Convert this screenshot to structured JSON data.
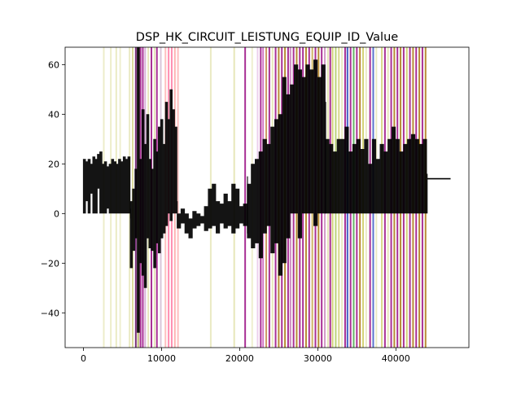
{
  "chart_data": {
    "type": "line",
    "title": "DSP_HK_CIRCUIT_LEISTUNG_EQUIP_ID_Value",
    "xlabel": "",
    "ylabel": "",
    "xlim": [
      -2350,
      49350
    ],
    "ylim": [
      -54,
      67
    ],
    "x_ticks": [
      0,
      10000,
      20000,
      30000,
      40000
    ],
    "x_tick_labels": [
      "0",
      "10000",
      "20000",
      "30000",
      "40000"
    ],
    "y_ticks": [
      -40,
      -20,
      0,
      20,
      40,
      60
    ],
    "y_tick_labels": [
      "−40",
      "−20",
      "0",
      "20",
      "40",
      "60"
    ],
    "grid": false,
    "legend": "none",
    "series": [
      {
        "color": "#000000",
        "segments": [
          {
            "x": [
              0,
              300,
              600,
              900,
              1200,
              1500,
              1800,
              2100,
              2400,
              2700,
              3000,
              3300,
              3600,
              3900,
              4200,
              4500,
              4800,
              5100,
              5400,
              5700,
              6000
            ],
            "y_low": [
              0,
              5,
              0,
              8,
              0,
              0,
              10,
              0,
              0,
              0,
              2,
              0,
              0,
              0,
              0,
              0,
              0,
              0,
              0,
              0,
              -2
            ],
            "y_high": [
              22,
              21,
              22,
              20,
              23,
              22,
              24,
              25,
              20,
              21,
              19,
              20,
              22,
              21,
              20,
              22,
              21,
              23,
              22,
              23,
              2
            ]
          },
          {
            "x": [
              6000,
              6300,
              6600,
              6900,
              7200,
              7500,
              7800,
              8100,
              8400,
              8700,
              9000,
              9300,
              9600,
              9900,
              10200,
              10500,
              10800,
              11100,
              11400,
              11700,
              12000
            ],
            "y_low": [
              -22,
              -15,
              -10,
              -48,
              -20,
              -25,
              -30,
              -10,
              -14,
              -15,
              -22,
              -12,
              -16,
              -10,
              -8,
              -5,
              0,
              -3,
              0,
              0,
              0
            ],
            "y_high": [
              5,
              10,
              18,
              67,
              22,
              42,
              28,
              40,
              22,
              18,
              30,
              25,
              35,
              38,
              28,
              45,
              38,
              50,
              42,
              35,
              5
            ]
          },
          {
            "x": [
              12000,
              12500,
              13000,
              13500,
              14000,
              14500,
              15000,
              15500,
              16000,
              16500,
              17000,
              17500,
              18000,
              18500,
              19000,
              19500,
              20000,
              20500,
              21000
            ],
            "y_low": [
              -6,
              -4,
              -8,
              -10,
              -6,
              -5,
              -4,
              -7,
              -6,
              -5,
              -8,
              -4,
              -6,
              -5,
              -8,
              -6,
              -4,
              -5,
              -8
            ],
            "y_high": [
              0,
              2,
              0,
              -2,
              1,
              0,
              -1,
              3,
              10,
              12,
              5,
              4,
              8,
              5,
              12,
              10,
              3,
              4,
              15
            ]
          },
          {
            "x": [
              21000,
              21500,
              22000,
              22500,
              23000,
              23500,
              24000,
              24500,
              25000,
              25500,
              26000,
              26500,
              27000,
              27500,
              28000,
              28500,
              29000,
              29500,
              30000,
              30500,
              31000
            ],
            "y_low": [
              -10,
              -14,
              -12,
              -18,
              -8,
              -5,
              -16,
              -12,
              -25,
              -20,
              -10,
              0,
              0,
              -10,
              0,
              0,
              0,
              -5,
              0,
              0,
              0
            ],
            "y_high": [
              12,
              20,
              22,
              25,
              30,
              28,
              35,
              38,
              40,
              55,
              48,
              52,
              60,
              58,
              55,
              60,
              58,
              62,
              55,
              60,
              45
            ]
          },
          {
            "x": [
              31000,
              31500,
              32000,
              32500,
              33000,
              33500,
              34000,
              34500,
              35000,
              35500,
              36000,
              36500,
              37000,
              37500,
              38000,
              38500,
              39000,
              39500,
              40000,
              40500,
              41000,
              41500,
              42000,
              42500,
              43000,
              43500,
              44000
            ],
            "y_low": [
              0,
              0,
              0,
              0,
              0,
              0,
              0,
              0,
              0,
              0,
              0,
              0,
              0,
              0,
              0,
              0,
              0,
              0,
              0,
              0,
              0,
              0,
              0,
              0,
              0,
              0,
              0
            ],
            "y_high": [
              30,
              28,
              25,
              30,
              30,
              35,
              25,
              28,
              30,
              26,
              30,
              20,
              30,
              22,
              28,
              25,
              30,
              35,
              30,
              25,
              28,
              30,
              32,
              30,
              28,
              30,
              16
            ]
          }
        ],
        "tail": {
          "x": [
            44000,
            44200,
            47000
          ],
          "y": [
            14,
            14,
            14
          ]
        }
      }
    ],
    "vertical_bands": [
      {
        "x": 2600,
        "color": "#d6d68a",
        "opacity": 0.45
      },
      {
        "x": 3500,
        "color": "#d6d68a",
        "opacity": 0.45
      },
      {
        "x": 4200,
        "color": "#d6d68a",
        "opacity": 0.5
      },
      {
        "x": 4700,
        "color": "#d6d68a",
        "opacity": 0.4
      },
      {
        "x": 5900,
        "color": "#d6d68a",
        "opacity": 0.5
      },
      {
        "x": 6300,
        "color": "#c4c45a",
        "opacity": 0.6
      },
      {
        "x": 6700,
        "color": "#6a1a6a",
        "opacity": 0.9
      },
      {
        "x": 7000,
        "color": "#a0a030",
        "opacity": 0.7
      },
      {
        "x": 7300,
        "color": "#a01a8a",
        "opacity": 0.9
      },
      {
        "x": 7600,
        "color": "#a01a8a",
        "opacity": 0.9
      },
      {
        "x": 7900,
        "color": "#c080c0",
        "opacity": 0.6
      },
      {
        "x": 8300,
        "color": "#d6d68a",
        "opacity": 0.6
      },
      {
        "x": 8700,
        "color": "#a01a8a",
        "opacity": 0.9
      },
      {
        "x": 9100,
        "color": "#d6d68a",
        "opacity": 0.6
      },
      {
        "x": 9400,
        "color": "#a01a8a",
        "opacity": 0.9
      },
      {
        "x": 9900,
        "color": "#c0a0c0",
        "opacity": 0.6
      },
      {
        "x": 10500,
        "color": "#ff8080",
        "opacity": 0.5
      },
      {
        "x": 10900,
        "color": "#ff6090",
        "opacity": 0.7
      },
      {
        "x": 11300,
        "color": "#ff6090",
        "opacity": 0.7
      },
      {
        "x": 11700,
        "color": "#ff8080",
        "opacity": 0.6
      },
      {
        "x": 12100,
        "color": "#ff8080",
        "opacity": 0.5
      },
      {
        "x": 16300,
        "color": "#d6d68a",
        "opacity": 0.5
      },
      {
        "x": 19300,
        "color": "#d6d68a",
        "opacity": 0.6
      },
      {
        "x": 20700,
        "color": "#a01a8a",
        "opacity": 0.9
      },
      {
        "x": 21600,
        "color": "#d6d68a",
        "opacity": 0.4
      },
      {
        "x": 22300,
        "color": "#e0b0e0",
        "opacity": 0.6
      },
      {
        "x": 22700,
        "color": "#a01a8a",
        "opacity": 0.9
      },
      {
        "x": 23000,
        "color": "#c040b0",
        "opacity": 0.7
      },
      {
        "x": 23400,
        "color": "#c08040",
        "opacity": 0.8
      },
      {
        "x": 23800,
        "color": "#a01a8a",
        "opacity": 0.9
      },
      {
        "x": 24200,
        "color": "#d6d68a",
        "opacity": 0.6
      },
      {
        "x": 24600,
        "color": "#a01a8a",
        "opacity": 0.9
      },
      {
        "x": 25000,
        "color": "#b08020",
        "opacity": 0.9
      },
      {
        "x": 25400,
        "color": "#a01a8a",
        "opacity": 0.9
      },
      {
        "x": 25800,
        "color": "#b08020",
        "opacity": 0.9
      },
      {
        "x": 26200,
        "color": "#a01a8a",
        "opacity": 0.9
      },
      {
        "x": 26500,
        "color": "#c070b0",
        "opacity": 0.8
      },
      {
        "x": 26900,
        "color": "#a01a8a",
        "opacity": 0.9
      },
      {
        "x": 27300,
        "color": "#b08020",
        "opacity": 0.9
      },
      {
        "x": 27700,
        "color": "#a01a8a",
        "opacity": 0.9
      },
      {
        "x": 28100,
        "color": "#a01a8a",
        "opacity": 0.9
      },
      {
        "x": 28500,
        "color": "#b08020",
        "opacity": 0.9
      },
      {
        "x": 28900,
        "color": "#a01a8a",
        "opacity": 0.9
      },
      {
        "x": 29300,
        "color": "#c0a040",
        "opacity": 0.8
      },
      {
        "x": 29700,
        "color": "#a01a8a",
        "opacity": 0.9
      },
      {
        "x": 30100,
        "color": "#b08020",
        "opacity": 0.9
      },
      {
        "x": 30500,
        "color": "#a01a8a",
        "opacity": 0.9
      },
      {
        "x": 30900,
        "color": "#c070b0",
        "opacity": 0.7
      },
      {
        "x": 31300,
        "color": "#d6d68a",
        "opacity": 0.6
      },
      {
        "x": 31600,
        "color": "#a01a8a",
        "opacity": 0.9
      },
      {
        "x": 31900,
        "color": "#c0c040",
        "opacity": 0.7
      },
      {
        "x": 32300,
        "color": "#a0c040",
        "opacity": 0.7
      },
      {
        "x": 32700,
        "color": "#c0c040",
        "opacity": 0.6
      },
      {
        "x": 33100,
        "color": "#d6d68a",
        "opacity": 0.5
      },
      {
        "x": 33500,
        "color": "#a01a8a",
        "opacity": 0.9
      },
      {
        "x": 33800,
        "color": "#3050c0",
        "opacity": 0.9
      },
      {
        "x": 34200,
        "color": "#a01a8a",
        "opacity": 0.9
      },
      {
        "x": 34600,
        "color": "#40a040",
        "opacity": 0.8
      },
      {
        "x": 35000,
        "color": "#a01a8a",
        "opacity": 0.9
      },
      {
        "x": 35400,
        "color": "#b08020",
        "opacity": 0.9
      },
      {
        "x": 35800,
        "color": "#c0c040",
        "opacity": 0.7
      },
      {
        "x": 36200,
        "color": "#d6d68a",
        "opacity": 0.5
      },
      {
        "x": 36700,
        "color": "#a01a8a",
        "opacity": 0.9
      },
      {
        "x": 37100,
        "color": "#3050c0",
        "opacity": 0.8
      },
      {
        "x": 37500,
        "color": "#d6d68a",
        "opacity": 0.5
      },
      {
        "x": 38200,
        "color": "#c0c040",
        "opacity": 0.6
      },
      {
        "x": 38600,
        "color": "#a01a8a",
        "opacity": 0.9
      },
      {
        "x": 39000,
        "color": "#d6d68a",
        "opacity": 0.6
      },
      {
        "x": 39400,
        "color": "#a01a8a",
        "opacity": 0.9
      },
      {
        "x": 39800,
        "color": "#b08020",
        "opacity": 0.9
      },
      {
        "x": 40200,
        "color": "#a01a8a",
        "opacity": 0.9
      },
      {
        "x": 40600,
        "color": "#b08020",
        "opacity": 0.9
      },
      {
        "x": 41000,
        "color": "#a01a8a",
        "opacity": 0.9
      },
      {
        "x": 41400,
        "color": "#c0c040",
        "opacity": 0.7
      },
      {
        "x": 41800,
        "color": "#a01a8a",
        "opacity": 0.9
      },
      {
        "x": 42200,
        "color": "#b08020",
        "opacity": 0.9
      },
      {
        "x": 42600,
        "color": "#a01a8a",
        "opacity": 0.9
      },
      {
        "x": 43000,
        "color": "#b08020",
        "opacity": 0.9
      },
      {
        "x": 43400,
        "color": "#a01a8a",
        "opacity": 0.9
      },
      {
        "x": 43800,
        "color": "#b08020",
        "opacity": 0.9
      }
    ]
  }
}
